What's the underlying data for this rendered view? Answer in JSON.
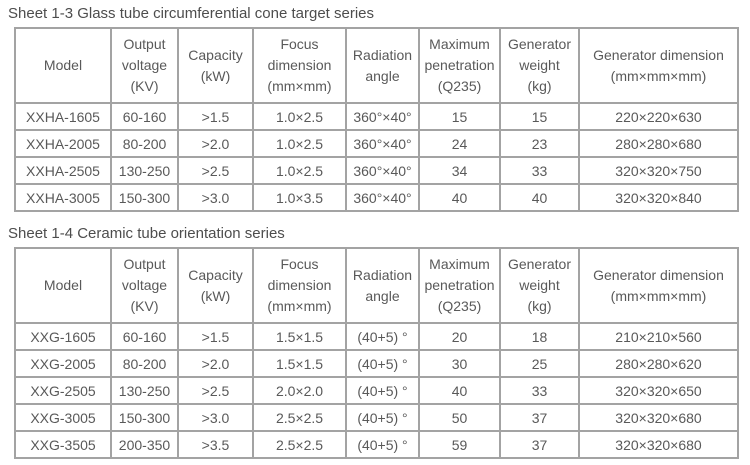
{
  "colors": {
    "border": "#a3a3a3",
    "text": "#595959",
    "title": "#4d4d4d",
    "background": "#ffffff"
  },
  "table1": {
    "title": "Sheet 1-3 Glass tube circumferential cone target series",
    "headers": [
      [
        "Model"
      ],
      [
        "Output",
        "voltage",
        "(KV)"
      ],
      [
        "Capacity",
        "(kW)"
      ],
      [
        "Focus",
        "dimension",
        "(mm×mm)"
      ],
      [
        "Radiation",
        "angle"
      ],
      [
        "Maximum",
        "penetration",
        "(Q235)"
      ],
      [
        "Generator",
        "weight",
        "(kg)"
      ],
      [
        "Generator dimension",
        "(mm×mm×mm)"
      ]
    ],
    "rows": [
      [
        "XXHA-1605",
        "60-160",
        ">1.5",
        "1.0×2.5",
        "360°×40°",
        "15",
        "15",
        "220×220×630"
      ],
      [
        "XXHA-2005",
        "80-200",
        ">2.0",
        "1.0×2.5",
        "360°×40°",
        "24",
        "23",
        "280×280×680"
      ],
      [
        "XXHA-2505",
        "130-250",
        ">2.5",
        "1.0×2.5",
        "360°×40°",
        "34",
        "33",
        "320×320×750"
      ],
      [
        "XXHA-3005",
        "150-300",
        ">3.0",
        "1.0×3.5",
        "360°×40°",
        "40",
        "40",
        "320×320×840"
      ]
    ]
  },
  "table2": {
    "title": "Sheet 1-4 Ceramic tube orientation series",
    "headers": [
      [
        "Model"
      ],
      [
        "Output",
        "voltage",
        "(KV)"
      ],
      [
        "Capacity",
        "(kW)"
      ],
      [
        "Focus",
        "dimension",
        "(mm×mm)"
      ],
      [
        "Radiation",
        "angle"
      ],
      [
        "Maximum",
        "penetration",
        "(Q235)"
      ],
      [
        "Generator",
        "weight",
        "(kg)"
      ],
      [
        "Generator dimension",
        "(mm×mm×mm)"
      ]
    ],
    "rows": [
      [
        "XXG-1605",
        "60-160",
        ">1.5",
        "1.5×1.5",
        "(40+5) °",
        "20",
        "18",
        "210×210×560"
      ],
      [
        "XXG-2005",
        "80-200",
        ">2.0",
        "1.5×1.5",
        "(40+5) °",
        "30",
        "25",
        "280×280×620"
      ],
      [
        "XXG-2505",
        "130-250",
        ">2.5",
        "2.0×2.0",
        "(40+5) °",
        "40",
        "33",
        "320×320×650"
      ],
      [
        "XXG-3005",
        "150-300",
        ">3.0",
        "2.5×2.5",
        "(40+5) °",
        "50",
        "37",
        "320×320×680"
      ],
      [
        "XXG-3505",
        "200-350",
        ">3.5",
        "2.5×2.5",
        "(40+5) °",
        "59",
        "37",
        "320×320×680"
      ]
    ]
  }
}
